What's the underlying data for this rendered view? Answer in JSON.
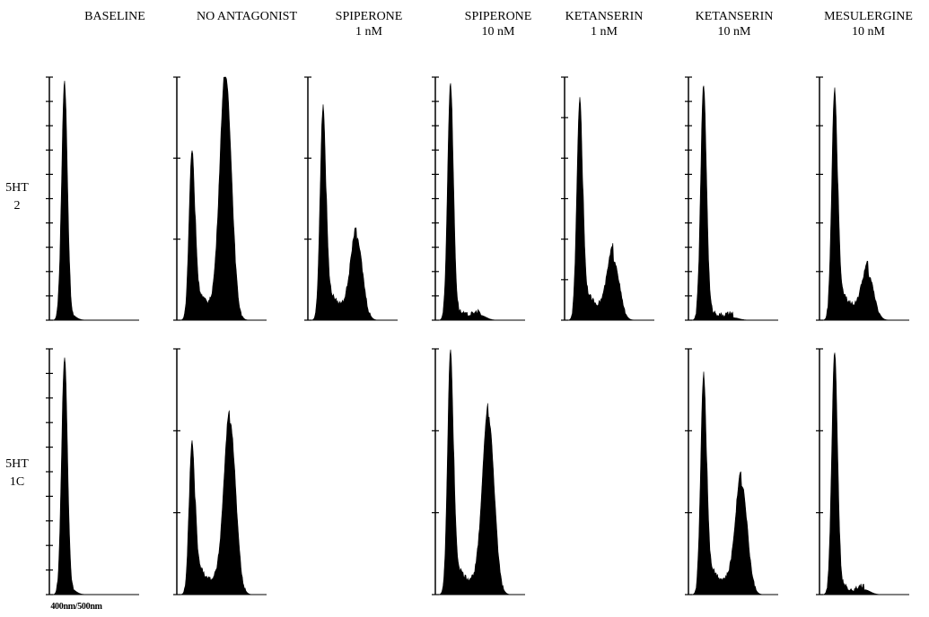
{
  "chart_data": {
    "type": "area",
    "description_axis": {
      "xlabel": "400nm/500nm",
      "ylabel": ""
    },
    "columns": [
      {
        "line1": "BASELINE",
        "line2": ""
      },
      {
        "line1": "NO ANTAGONIST",
        "line2": ""
      },
      {
        "line1": "SPIPERONE",
        "line2": "1 nM"
      },
      {
        "line1": "SPIPERONE",
        "line2": "10 nM"
      },
      {
        "line1": "KETANSERIN",
        "line2": "1 nM"
      },
      {
        "line1": "KETANSERIN",
        "line2": "10 nM"
      },
      {
        "line1": "MESULERGINE",
        "line2": "10 nM"
      }
    ],
    "rows": [
      {
        "line1": "5HT",
        "line2": "2"
      },
      {
        "line1": "5HT",
        "line2": "1C"
      }
    ],
    "panels": [
      {
        "row": 0,
        "col": 0,
        "present": true,
        "peak1_height": 0.97,
        "peak2_height": 0.0,
        "peak2_position": 0.0,
        "ticks": 10
      },
      {
        "row": 0,
        "col": 1,
        "present": true,
        "peak1_height": 0.68,
        "peak2_height": 1.0,
        "peak2_position": 0.55,
        "ticks": 3
      },
      {
        "row": 0,
        "col": 2,
        "present": true,
        "peak1_height": 0.86,
        "peak2_height": 0.33,
        "peak2_position": 0.55,
        "ticks": 3
      },
      {
        "row": 0,
        "col": 3,
        "present": true,
        "peak1_height": 0.97,
        "peak2_height": 0.02,
        "peak2_position": 0.5,
        "ticks": 10
      },
      {
        "row": 0,
        "col": 4,
        "present": true,
        "peak1_height": 0.89,
        "peak2_height": 0.25,
        "peak2_position": 0.55,
        "ticks": 6
      },
      {
        "row": 0,
        "col": 5,
        "present": true,
        "peak1_height": 0.96,
        "peak2_height": 0.01,
        "peak2_position": 0.5,
        "ticks": 10
      },
      {
        "row": 0,
        "col": 6,
        "present": true,
        "peak1_height": 0.93,
        "peak2_height": 0.18,
        "peak2_position": 0.55,
        "ticks": 5
      },
      {
        "row": 1,
        "col": 0,
        "present": true,
        "peak1_height": 0.96,
        "peak2_height": 0.0,
        "peak2_position": 0.0,
        "ticks": 10
      },
      {
        "row": 1,
        "col": 1,
        "present": true,
        "peak1_height": 0.6,
        "peak2_height": 0.7,
        "peak2_position": 0.6,
        "ticks": 3
      },
      {
        "row": 1,
        "col": 2,
        "present": false
      },
      {
        "row": 1,
        "col": 3,
        "present": true,
        "peak1_height": 0.97,
        "peak2_height": 0.72,
        "peak2_position": 0.6,
        "ticks": 3
      },
      {
        "row": 1,
        "col": 4,
        "present": false
      },
      {
        "row": 1,
        "col": 5,
        "present": true,
        "peak1_height": 0.88,
        "peak2_height": 0.45,
        "peak2_position": 0.6,
        "ticks": 3
      },
      {
        "row": 1,
        "col": 6,
        "present": true,
        "peak1_height": 0.98,
        "peak2_height": 0.02,
        "peak2_position": 0.5,
        "ticks": 3
      }
    ]
  }
}
